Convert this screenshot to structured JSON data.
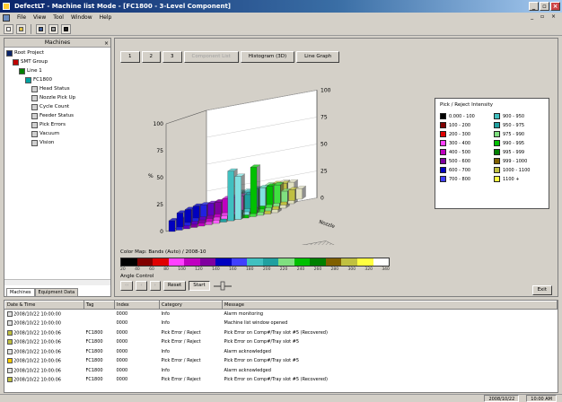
{
  "window": {
    "title": "DefectLT - Machine list Mode - [FC1800 - 3-Level Component]"
  },
  "menu": [
    "File",
    "View",
    "Tool",
    "Window",
    "Help"
  ],
  "mdi_controls": "_ ▫ ×",
  "toolbar": {
    "icons": [
      "new-icon",
      "open-icon",
      "save-icon",
      "print-icon",
      "help-icon"
    ]
  },
  "tree": {
    "header": "Machines",
    "items": [
      {
        "label": "Root Project",
        "color": "#0a246a",
        "indent": 0
      },
      {
        "label": "SMT Group",
        "color": "#c00000",
        "indent": 1
      },
      {
        "label": "Line 1",
        "color": "#008000",
        "indent": 2
      },
      {
        "label": "FC1800",
        "color": "#00a0a0",
        "indent": 3
      },
      {
        "label": "Head Status",
        "color": "#d0d0d0",
        "indent": 4
      },
      {
        "label": "Nozzle Pick Up",
        "color": "#d0d0d0",
        "indent": 4
      },
      {
        "label": "Cycle Count",
        "color": "#d0d0d0",
        "indent": 4
      },
      {
        "label": "Feeder Status",
        "color": "#d0d0d0",
        "indent": 4
      },
      {
        "label": "Pick Errors",
        "color": "#d0d0d0",
        "indent": 4
      },
      {
        "label": "Vacuum",
        "color": "#d0d0d0",
        "indent": 4
      },
      {
        "label": "Vision",
        "color": "#d0d0d0",
        "indent": 4
      }
    ],
    "tabs": [
      "Machines",
      "Equipment Data"
    ]
  },
  "view_tabs": [
    {
      "label": "1",
      "disabled": false
    },
    {
      "label": "2",
      "disabled": false
    },
    {
      "label": "3",
      "disabled": false
    },
    {
      "label": "Component List",
      "disabled": true
    },
    {
      "label": "Histogram (3D)",
      "disabled": false
    },
    {
      "label": "Line Graph",
      "disabled": false
    }
  ],
  "legend": {
    "title": "Pick / Reject Intensity",
    "entries": [
      {
        "label": "0.000 - 100",
        "color": "#000000"
      },
      {
        "label": "900 - 950",
        "color": "#40c0c0"
      },
      {
        "label": "100 - 200",
        "color": "#800000"
      },
      {
        "label": "950 - 975",
        "color": "#20a0a0"
      },
      {
        "label": "200 - 300",
        "color": "#e00000"
      },
      {
        "label": "975 - 990",
        "color": "#80e080"
      },
      {
        "label": "300 - 400",
        "color": "#ff40ff"
      },
      {
        "label": "990 - 995",
        "color": "#00c000"
      },
      {
        "label": "400 - 500",
        "color": "#c000c0"
      },
      {
        "label": "995 - 999",
        "color": "#008000"
      },
      {
        "label": "500 - 600",
        "color": "#8000a0"
      },
      {
        "label": "999 - 1000",
        "color": "#806000"
      },
      {
        "label": "600 - 700",
        "color": "#0000c0"
      },
      {
        "label": "1000 - 1100",
        "color": "#c0c040"
      },
      {
        "label": "700 - 800",
        "color": "#4040ff"
      },
      {
        "label": "1100 +",
        "color": "#ffff40"
      }
    ]
  },
  "chart_data": {
    "type": "bar",
    "title": "",
    "yticks_left": [
      "100",
      "75",
      "50",
      "25",
      "0"
    ],
    "yticks_right": [
      "100",
      "75",
      "50",
      "25",
      "0"
    ],
    "ylabel": "%",
    "ylim": [
      0,
      100
    ],
    "depth_labels": [
      "Nozzle",
      "Nozzle"
    ],
    "series": [
      {
        "values": [
          10,
          10,
          10,
          10,
          12,
          12,
          12,
          12,
          12,
          12,
          12,
          12,
          12,
          12,
          12
        ]
      },
      {
        "values": [
          13,
          13,
          13,
          13,
          15,
          15,
          15,
          15,
          22,
          22,
          22,
          22,
          24,
          24,
          24
        ]
      },
      {
        "values": [
          12,
          12,
          12,
          12,
          14,
          14,
          14,
          14,
          18,
          18,
          18,
          18,
          20,
          20,
          20
        ]
      },
      {
        "values": [
          11,
          11,
          11,
          11,
          13,
          13,
          13,
          13,
          17,
          17,
          17,
          17,
          10,
          10,
          10
        ]
      }
    ],
    "spikes": [
      {
        "col": 8,
        "row": 0,
        "value": 46
      },
      {
        "col": 9,
        "row": 0,
        "value": 40
      },
      {
        "col": 10,
        "row": 1,
        "value": 43
      }
    ],
    "colors": [
      "#0000c0",
      "#2020e0",
      "#6000c0",
      "#8000a0",
      "#c000c0",
      "#e040e0",
      "#ff60ff",
      "#20a0a0",
      "#40c0c0",
      "#80e0e0",
      "#00c000",
      "#40e040",
      "#80e080",
      "#c0c040",
      "#e0e0c0"
    ]
  },
  "colorband": {
    "label": "Color Map: Bands (Auto) / 2008-10",
    "ticks": [
      "20",
      "40",
      "60",
      "80",
      "100",
      "120",
      "140",
      "160",
      "180",
      "200",
      "220",
      "240",
      "260",
      "280",
      "300",
      "320",
      "340"
    ],
    "colors": [
      "#000000",
      "#800000",
      "#e00000",
      "#ff40ff",
      "#c000c0",
      "#8000a0",
      "#0000c0",
      "#4040ff",
      "#40c0c0",
      "#20a0a0",
      "#80e080",
      "#00c000",
      "#008000",
      "#806000",
      "#c0c040",
      "#ffff40",
      "#ffffff"
    ]
  },
  "angle": {
    "label": "Angle Control",
    "buttons": [
      "‹‹",
      "‹",
      "›",
      "Reset",
      "Start"
    ],
    "slider_icon": "slider-icon"
  },
  "exit_label": "Exit",
  "log": {
    "columns": [
      "Date & Time",
      "Tag",
      "Index",
      "Category",
      "Message"
    ],
    "rows": [
      [
        "2008/10/22 10:00:00",
        "",
        "0000",
        "Info",
        "Alarm monitoring"
      ],
      [
        "2008/10/22 10:00:00",
        "",
        "0000",
        "Info",
        "Machine list window opened"
      ],
      [
        "2008/10/22 10:00:06",
        "FC1800",
        "0000",
        "Pick Error / Reject",
        "Pick Error on Comp#/Tray slot #5 (Recovered)"
      ],
      [
        "2008/10/22 10:00:06",
        "FC1800",
        "0000",
        "Pick Error / Reject",
        "Pick Error on Comp#/Tray slot #5"
      ],
      [
        "2008/10/22 10:00:06",
        "FC1800",
        "0000",
        "Info",
        "Alarm acknowledged"
      ],
      [
        "2008/10/22 10:00:06",
        "FC1800",
        "0000",
        "Pick Error / Reject",
        "Pick Error on Comp#/Tray slot #5"
      ],
      [
        "2008/10/22 10:00:06",
        "FC1800",
        "0000",
        "Info",
        "Alarm acknowledged"
      ],
      [
        "2008/10/22 10:00:06",
        "FC1800",
        "0000",
        "Pick Error / Reject",
        "Pick Error on Comp#/Tray slot #5 (Recovered)"
      ]
    ],
    "row_icons": [
      "#e0e0e0",
      "#e0e0e0",
      "#c0c040",
      "#c0c040",
      "#e0e0e0",
      "#ffcc00",
      "#e0e0e0",
      "#c0c040"
    ]
  },
  "status": [
    "2008/10/22",
    "10:00 AM"
  ]
}
